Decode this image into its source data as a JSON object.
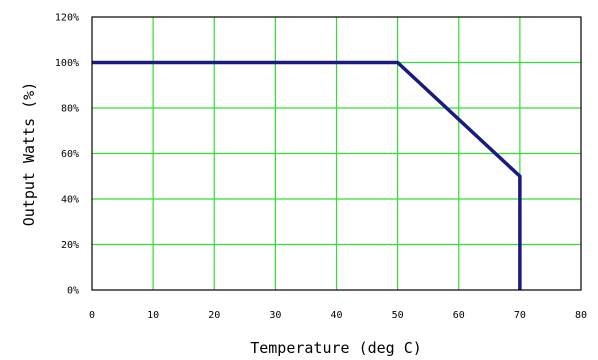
{
  "chart_data": {
    "type": "line",
    "title": "",
    "xlabel": "Temperature (deg C)",
    "ylabel": "Output Watts (%)",
    "xlim": [
      0,
      80
    ],
    "ylim": [
      0,
      120
    ],
    "x_ticks": [
      0,
      10,
      20,
      30,
      40,
      50,
      60,
      70,
      80
    ],
    "x_tick_labels": [
      "0",
      "10",
      "20",
      "30",
      "40",
      "50",
      "60",
      "70",
      "80"
    ],
    "y_ticks": [
      0,
      20,
      40,
      60,
      80,
      100,
      120
    ],
    "y_tick_labels": [
      "0%",
      "20%",
      "40%",
      "60%",
      "80%",
      "100%",
      "120%"
    ],
    "grid": true,
    "legend": "none",
    "series": [
      {
        "x": [
          0,
          50,
          70,
          70
        ],
        "y": [
          100,
          100,
          50,
          0
        ]
      }
    ],
    "colors": {
      "grid": "#33dd33",
      "line": "#1a1a80",
      "frame": "#000000"
    }
  }
}
